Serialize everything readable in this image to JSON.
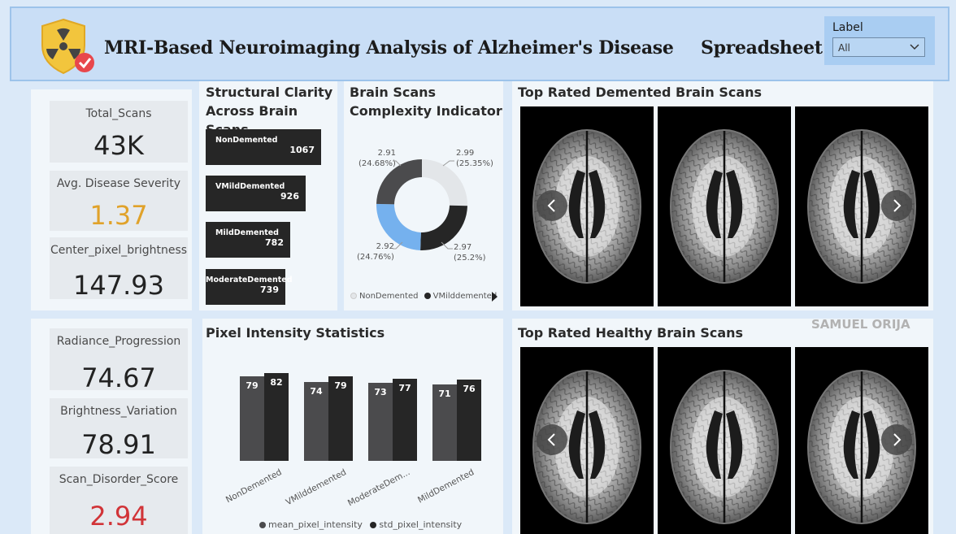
{
  "header": {
    "title": "MRI-Based Neuroimaging Analysis of Alzheimer's Disease",
    "spreadsheet_link": "Spreadsheet",
    "filter": {
      "label": "Label",
      "selected": "All"
    },
    "logo_icon": "radiation-shield-check-icon"
  },
  "kpis_top": [
    {
      "label": "Total_Scans",
      "value": "43K",
      "color": "#222222"
    },
    {
      "label": "Avg. Disease Severity",
      "value": "1.37",
      "color": "#e0a22a"
    },
    {
      "label": "Center_pixel_brightness",
      "value": "147.93",
      "color": "#222222"
    }
  ],
  "kpis_bottom": [
    {
      "label": "Radiance_Progression",
      "value": "74.67",
      "color": "#222222"
    },
    {
      "label": "Brightness_Variation",
      "value": "78.91",
      "color": "#222222"
    },
    {
      "label": "Scan_Disorder_Score",
      "value": "2.94",
      "color": "#d13438"
    }
  ],
  "chart_data": [
    {
      "type": "bar",
      "orientation": "horizontal",
      "title": "Structural Clarity Across Brain Scans",
      "categories": [
        "NonDemented",
        "VMildDemented",
        "MildDemented",
        "ModerateDemented"
      ],
      "values": [
        1067,
        926,
        782,
        739
      ],
      "xlim": [
        0,
        1067
      ]
    },
    {
      "type": "pie",
      "style": "donut",
      "title": "Brain Scans Complexity Indicator",
      "slices": [
        {
          "name": "NonDemented",
          "value": 2.99,
          "label": "2.99",
          "pct": "(25.35%)",
          "color": "#e3e6e9"
        },
        {
          "name": "VMilddemented",
          "value": 2.97,
          "label": "2.97",
          "pct": "(25.2%)",
          "color": "#262626"
        },
        {
          "name": "",
          "value": 2.92,
          "label": "2.92",
          "pct": "(24.76%)",
          "color": "#75b1ee"
        },
        {
          "name": "",
          "value": 2.91,
          "label": "2.91",
          "pct": "(24.68%)",
          "color": "#4b4b4d"
        }
      ],
      "legend": [
        "NonDemented",
        "VMilddemented"
      ],
      "legend_position": "bottom"
    },
    {
      "type": "bar",
      "title": "Pixel Intensity Statistics",
      "categories": [
        "NonDemented",
        "VMilddemented",
        "ModerateDem...",
        "MildDemented"
      ],
      "series": [
        {
          "name": "mean_pixel_intensity",
          "values": [
            79,
            74,
            73,
            71
          ],
          "color": "#4b4b4d"
        },
        {
          "name": "std_pixel_intensity",
          "values": [
            82,
            79,
            77,
            76
          ],
          "color": "#262626"
        }
      ],
      "ylim": [
        0,
        82
      ],
      "legend_position": "bottom"
    }
  ],
  "gallery_demented": {
    "title": "Top Rated Demented Brain Scans",
    "images": [
      "mri-scan-1",
      "mri-scan-2",
      "mri-scan-3"
    ]
  },
  "gallery_healthy": {
    "title": "Top Rated Healthy Brain Scans",
    "images": [
      "mri-scan-4",
      "mri-scan-5",
      "mri-scan-6"
    ]
  },
  "watermark": "SAMUEL ORIJA"
}
